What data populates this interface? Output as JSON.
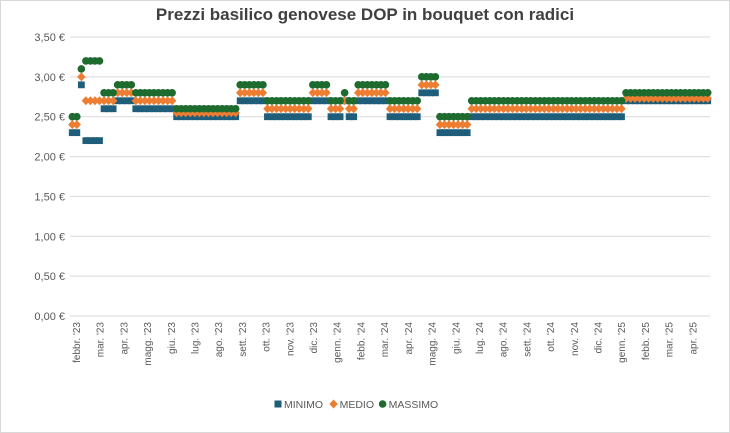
{
  "chart_data": {
    "type": "scatter",
    "title": "Prezzi basilico genovese DOP in bouquet con radici",
    "xlabel": "",
    "ylabel": "",
    "ylim": [
      0,
      3.5
    ],
    "yticks": [
      "0,00 €",
      "0,50 €",
      "1,00 €",
      "1,50 €",
      "2,00 €",
      "2,50 €",
      "3,00 €",
      "3,50 €"
    ],
    "grid": true,
    "legend_position": "bottom",
    "x_tick_labels": [
      "febbr. '23",
      "mar. '23",
      "apr. '23",
      "magg. '23",
      "giu. '23",
      "lug. '23",
      "ago. '23",
      "sett. '23",
      "ott. '23",
      "nov. '23",
      "dic. '23",
      "genn. '24",
      "febb. '24",
      "mar. '24",
      "apr. '24",
      "magg. '24",
      "giu. '24",
      "lug. '24",
      "ago. '24",
      "sett. '24",
      "ott. '24",
      "nov. '24",
      "dic. '24",
      "genn. '25",
      "febb. '25",
      "mar. '25",
      "apr. '25"
    ],
    "series": [
      {
        "name": "MINIMO",
        "color": "#1f5e7a",
        "marker": "square",
        "values": [
          2.3,
          2.3,
          2.9,
          2.2,
          2.2,
          2.2,
          2.2,
          2.6,
          2.6,
          2.6,
          2.7,
          2.7,
          2.7,
          2.7,
          2.6,
          2.6,
          2.6,
          2.6,
          2.6,
          2.6,
          2.6,
          2.6,
          2.6,
          2.5,
          2.5,
          2.5,
          2.5,
          2.5,
          2.5,
          2.5,
          2.5,
          2.5,
          2.5,
          2.5,
          2.5,
          2.5,
          2.5,
          2.7,
          2.7,
          2.7,
          2.7,
          2.7,
          2.7,
          2.5,
          2.5,
          2.5,
          2.5,
          2.5,
          2.5,
          2.5,
          2.5,
          2.5,
          2.5,
          2.7,
          2.7,
          2.7,
          2.7,
          2.5,
          2.5,
          2.5,
          2.7,
          2.5,
          2.5,
          2.7,
          2.7,
          2.7,
          2.7,
          2.7,
          2.7,
          2.7,
          2.5,
          2.5,
          2.5,
          2.5,
          2.5,
          2.5,
          2.5,
          2.8,
          2.8,
          2.8,
          2.8,
          2.3,
          2.3,
          2.3,
          2.3,
          2.3,
          2.3,
          2.3,
          2.5,
          2.5,
          2.5,
          2.5,
          2.5,
          2.5,
          2.5,
          2.5,
          2.5,
          2.5,
          2.5,
          2.5,
          2.5,
          2.5,
          2.5,
          2.5,
          2.5,
          2.5,
          2.5,
          2.5,
          2.5,
          2.5,
          2.5,
          2.5,
          2.5,
          2.5,
          2.5,
          2.5,
          2.5,
          2.5,
          2.5,
          2.5,
          2.5,
          2.5,
          2.7,
          2.7,
          2.7,
          2.7,
          2.7,
          2.7,
          2.7,
          2.7,
          2.7,
          2.7,
          2.7,
          2.7,
          2.7,
          2.7,
          2.7,
          2.7,
          2.7,
          2.7,
          2.7
        ]
      },
      {
        "name": "MEDIO",
        "color": "#ed7d31",
        "marker": "diamond",
        "values": [
          2.4,
          2.4,
          3.0,
          2.7,
          2.7,
          2.7,
          2.7,
          2.7,
          2.7,
          2.7,
          2.8,
          2.8,
          2.8,
          2.8,
          2.7,
          2.7,
          2.7,
          2.7,
          2.7,
          2.7,
          2.7,
          2.7,
          2.7,
          2.55,
          2.55,
          2.55,
          2.55,
          2.55,
          2.55,
          2.55,
          2.55,
          2.55,
          2.55,
          2.55,
          2.55,
          2.55,
          2.55,
          2.8,
          2.8,
          2.8,
          2.8,
          2.8,
          2.8,
          2.6,
          2.6,
          2.6,
          2.6,
          2.6,
          2.6,
          2.6,
          2.6,
          2.6,
          2.6,
          2.8,
          2.8,
          2.8,
          2.8,
          2.6,
          2.6,
          2.6,
          2.7,
          2.6,
          2.6,
          2.8,
          2.8,
          2.8,
          2.8,
          2.8,
          2.8,
          2.8,
          2.6,
          2.6,
          2.6,
          2.6,
          2.6,
          2.6,
          2.6,
          2.9,
          2.9,
          2.9,
          2.9,
          2.4,
          2.4,
          2.4,
          2.4,
          2.4,
          2.4,
          2.4,
          2.6,
          2.6,
          2.6,
          2.6,
          2.6,
          2.6,
          2.6,
          2.6,
          2.6,
          2.6,
          2.6,
          2.6,
          2.6,
          2.6,
          2.6,
          2.6,
          2.6,
          2.6,
          2.6,
          2.6,
          2.6,
          2.6,
          2.6,
          2.6,
          2.6,
          2.6,
          2.6,
          2.6,
          2.6,
          2.6,
          2.6,
          2.6,
          2.6,
          2.6,
          2.73,
          2.73,
          2.73,
          2.73,
          2.73,
          2.73,
          2.73,
          2.73,
          2.73,
          2.73,
          2.73,
          2.73,
          2.73,
          2.73,
          2.73,
          2.73,
          2.73,
          2.73,
          2.73
        ]
      },
      {
        "name": "MASSIMO",
        "color": "#1e6b2f",
        "marker": "circle",
        "values": [
          2.5,
          2.5,
          3.1,
          3.2,
          3.2,
          3.2,
          3.2,
          2.8,
          2.8,
          2.8,
          2.9,
          2.9,
          2.9,
          2.9,
          2.8,
          2.8,
          2.8,
          2.8,
          2.8,
          2.8,
          2.8,
          2.8,
          2.8,
          2.6,
          2.6,
          2.6,
          2.6,
          2.6,
          2.6,
          2.6,
          2.6,
          2.6,
          2.6,
          2.6,
          2.6,
          2.6,
          2.6,
          2.9,
          2.9,
          2.9,
          2.9,
          2.9,
          2.9,
          2.7,
          2.7,
          2.7,
          2.7,
          2.7,
          2.7,
          2.7,
          2.7,
          2.7,
          2.7,
          2.9,
          2.9,
          2.9,
          2.9,
          2.7,
          2.7,
          2.7,
          2.8,
          2.7,
          2.7,
          2.9,
          2.9,
          2.9,
          2.9,
          2.9,
          2.9,
          2.9,
          2.7,
          2.7,
          2.7,
          2.7,
          2.7,
          2.7,
          2.7,
          3.0,
          3.0,
          3.0,
          3.0,
          2.5,
          2.5,
          2.5,
          2.5,
          2.5,
          2.5,
          2.5,
          2.7,
          2.7,
          2.7,
          2.7,
          2.7,
          2.7,
          2.7,
          2.7,
          2.7,
          2.7,
          2.7,
          2.7,
          2.7,
          2.7,
          2.7,
          2.7,
          2.7,
          2.7,
          2.7,
          2.7,
          2.7,
          2.7,
          2.7,
          2.7,
          2.7,
          2.7,
          2.7,
          2.7,
          2.7,
          2.7,
          2.7,
          2.7,
          2.7,
          2.7,
          2.8,
          2.8,
          2.8,
          2.8,
          2.8,
          2.8,
          2.8,
          2.8,
          2.8,
          2.8,
          2.8,
          2.8,
          2.8,
          2.8,
          2.8,
          2.8,
          2.8,
          2.8,
          2.8
        ]
      }
    ]
  }
}
